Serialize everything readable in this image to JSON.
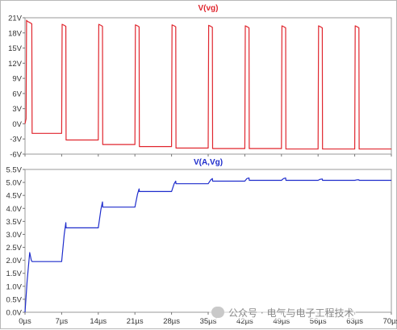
{
  "chart_data": [
    {
      "type": "line",
      "title": "V(vg)",
      "color": "#e0262e",
      "ylim": [
        -6,
        21
      ],
      "yticks": [
        "21V",
        "18V",
        "15V",
        "12V",
        "9V",
        "6V",
        "3V",
        "0V",
        "-3V",
        "-6V"
      ],
      "series": [
        {
          "name": "V(vg)",
          "x": [
            0.0,
            0.2,
            0.3,
            0.45,
            1.0,
            1.3,
            1.35,
            7.0,
            7.1,
            7.5,
            7.8,
            7.85,
            14.0,
            14.1,
            14.5,
            14.8,
            14.85,
            21.0,
            21.1,
            21.5,
            21.8,
            21.85,
            28.0,
            28.1,
            28.5,
            28.8,
            28.85,
            35.0,
            35.1,
            35.5,
            35.8,
            35.85,
            42.0,
            42.1,
            42.5,
            42.8,
            42.85,
            49.0,
            49.1,
            49.5,
            49.8,
            49.85,
            56.0,
            56.1,
            56.5,
            56.8,
            56.85,
            63.0,
            63.1,
            63.5,
            63.8,
            63.85,
            70.0
          ],
          "values": [
            0.0,
            1.0,
            20.5,
            20.3,
            20.0,
            19.8,
            -1.9,
            -1.9,
            19.7,
            19.5,
            19.3,
            -3.2,
            -3.2,
            19.7,
            19.5,
            19.3,
            -4.1,
            -4.1,
            19.6,
            19.4,
            19.2,
            -4.5,
            -4.5,
            19.6,
            19.4,
            19.2,
            -4.8,
            -4.8,
            19.5,
            19.3,
            19.1,
            -4.9,
            -4.9,
            19.4,
            19.2,
            19.0,
            -4.9,
            -4.9,
            19.4,
            19.2,
            19.0,
            -5.0,
            -5.0,
            19.4,
            19.2,
            19.0,
            -5.0,
            -5.0,
            19.4,
            19.2,
            19.0,
            -5.0,
            -5.0
          ]
        }
      ]
    },
    {
      "type": "line",
      "title": "V(A,Vg)",
      "color": "#1f2dcc",
      "xlabel": "",
      "ylim": [
        0,
        5.5
      ],
      "xlim": [
        0,
        70
      ],
      "yticks": [
        "5.5V",
        "5.0V",
        "4.5V",
        "4.0V",
        "3.5V",
        "3.0V",
        "2.5V",
        "2.0V",
        "1.5V",
        "1.0V",
        "0.5V",
        "0.0V"
      ],
      "xticks": [
        "0µs",
        "7µs",
        "14µs",
        "21µs",
        "28µs",
        "35µs",
        "42µs",
        "49µs",
        "56µs",
        "63µs",
        "70µs"
      ],
      "series": [
        {
          "name": "V(A,Vg)",
          "x": [
            0.0,
            0.4,
            0.9,
            1.2,
            1.35,
            7.0,
            7.5,
            7.8,
            7.85,
            14.0,
            14.5,
            14.8,
            14.85,
            21.0,
            21.5,
            21.8,
            21.85,
            28.0,
            28.5,
            28.8,
            28.85,
            35.0,
            35.5,
            35.8,
            35.85,
            42.0,
            42.4,
            42.8,
            42.85,
            49.0,
            49.4,
            49.8,
            49.85,
            56.0,
            56.4,
            56.8,
            56.85,
            63.0,
            63.4,
            63.8,
            63.85,
            70.0
          ],
          "values": [
            0.0,
            1.2,
            2.3,
            2.0,
            1.95,
            1.95,
            3.0,
            3.45,
            3.25,
            3.25,
            3.95,
            4.25,
            4.05,
            4.05,
            4.55,
            4.75,
            4.65,
            4.65,
            4.95,
            5.05,
            4.95,
            4.95,
            5.1,
            5.15,
            5.05,
            5.05,
            5.15,
            5.17,
            5.08,
            5.08,
            5.15,
            5.17,
            5.08,
            5.08,
            5.12,
            5.13,
            5.08,
            5.08,
            5.1,
            5.1,
            5.08,
            5.08
          ]
        }
      ]
    }
  ],
  "watermark": {
    "text": "公众号 · 电气与电子工程技术"
  }
}
